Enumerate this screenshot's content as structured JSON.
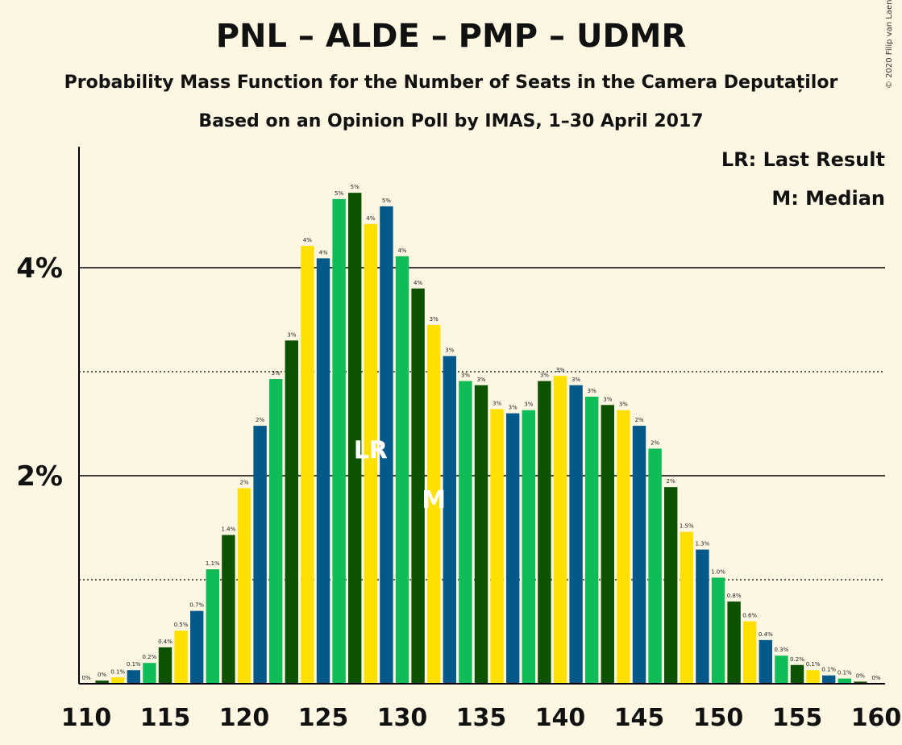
{
  "title": "PNL – ALDE – PMP – UDMR",
  "subtitle": "Probability Mass Function for the Number of Seats in the Camera Deputaților",
  "subtitle2": "Based on an Opinion Poll by IMAS, 1–30 April 2017",
  "copyright": "© 2020 Filip van Laenen",
  "legend": {
    "lr": "LR: Last Result",
    "m": "M: Median"
  },
  "markers": {
    "lr_label": "LR",
    "m_label": "M"
  },
  "colors": {
    "green": "#10bc58",
    "dark_green": "#0c5200",
    "blue": "#02598a",
    "yellow": "#ffe000",
    "background": "#fdf6e3"
  },
  "chart_data": {
    "type": "bar",
    "xlabel": "",
    "ylabel": "",
    "ylim": [
      0,
      5.0
    ],
    "y_ticks": [
      {
        "value": 2,
        "label": "2%"
      },
      {
        "value": 4,
        "label": "4%"
      }
    ],
    "x_tick_labels": [
      "110",
      "115",
      "120",
      "125",
      "130",
      "135",
      "140",
      "145",
      "150",
      "155",
      "160"
    ],
    "last_result": 128,
    "median": 132,
    "bars": [
      {
        "seats": 110,
        "value": 0.0,
        "label": "0%",
        "color": "dark_green"
      },
      {
        "seats": 111,
        "value": 0.03,
        "label": "0%",
        "color": "dark_green"
      },
      {
        "seats": 112,
        "value": 0.06,
        "label": "0.1%",
        "color": "yellow"
      },
      {
        "seats": 113,
        "value": 0.13,
        "label": "0.1%",
        "color": "blue"
      },
      {
        "seats": 114,
        "value": 0.2,
        "label": "0.2%",
        "color": "green"
      },
      {
        "seats": 115,
        "value": 0.35,
        "label": "0.4%",
        "color": "dark_green"
      },
      {
        "seats": 116,
        "value": 0.51,
        "label": "0.5%",
        "color": "yellow"
      },
      {
        "seats": 117,
        "value": 0.7,
        "label": "0.7%",
        "color": "blue"
      },
      {
        "seats": 118,
        "value": 1.1,
        "label": "1.1%",
        "color": "green"
      },
      {
        "seats": 119,
        "value": 1.43,
        "label": "1.4%",
        "color": "dark_green"
      },
      {
        "seats": 120,
        "value": 1.88,
        "label": "2%",
        "color": "yellow"
      },
      {
        "seats": 121,
        "value": 2.48,
        "label": "2%",
        "color": "blue"
      },
      {
        "seats": 122,
        "value": 2.93,
        "label": "3%",
        "color": "green"
      },
      {
        "seats": 123,
        "value": 3.3,
        "label": "3%",
        "color": "dark_green"
      },
      {
        "seats": 124,
        "value": 4.21,
        "label": "4%",
        "color": "yellow"
      },
      {
        "seats": 125,
        "value": 4.09,
        "label": "4%",
        "color": "blue"
      },
      {
        "seats": 126,
        "value": 4.66,
        "label": "5%",
        "color": "green"
      },
      {
        "seats": 127,
        "value": 4.72,
        "label": "5%",
        "color": "dark_green"
      },
      {
        "seats": 128,
        "value": 4.42,
        "label": "4%",
        "color": "yellow"
      },
      {
        "seats": 129,
        "value": 4.59,
        "label": "5%",
        "color": "blue"
      },
      {
        "seats": 130,
        "value": 4.11,
        "label": "4%",
        "color": "green"
      },
      {
        "seats": 131,
        "value": 3.8,
        "label": "4%",
        "color": "dark_green"
      },
      {
        "seats": 132,
        "value": 3.45,
        "label": "3%",
        "color": "yellow"
      },
      {
        "seats": 133,
        "value": 3.15,
        "label": "3%",
        "color": "blue"
      },
      {
        "seats": 134,
        "value": 2.91,
        "label": "3%",
        "color": "green"
      },
      {
        "seats": 135,
        "value": 2.87,
        "label": "3%",
        "color": "dark_green"
      },
      {
        "seats": 136,
        "value": 2.64,
        "label": "3%",
        "color": "yellow"
      },
      {
        "seats": 137,
        "value": 2.6,
        "label": "3%",
        "color": "blue"
      },
      {
        "seats": 138,
        "value": 2.63,
        "label": "3%",
        "color": "green"
      },
      {
        "seats": 139,
        "value": 2.91,
        "label": "3%",
        "color": "dark_green"
      },
      {
        "seats": 140,
        "value": 2.96,
        "label": "3%",
        "color": "yellow"
      },
      {
        "seats": 141,
        "value": 2.87,
        "label": "3%",
        "color": "blue"
      },
      {
        "seats": 142,
        "value": 2.76,
        "label": "3%",
        "color": "green"
      },
      {
        "seats": 143,
        "value": 2.68,
        "label": "3%",
        "color": "dark_green"
      },
      {
        "seats": 144,
        "value": 2.63,
        "label": "3%",
        "color": "yellow"
      },
      {
        "seats": 145,
        "value": 2.48,
        "label": "2%",
        "color": "blue"
      },
      {
        "seats": 146,
        "value": 2.26,
        "label": "2%",
        "color": "green"
      },
      {
        "seats": 147,
        "value": 1.89,
        "label": "2%",
        "color": "dark_green"
      },
      {
        "seats": 148,
        "value": 1.46,
        "label": "1.5%",
        "color": "yellow"
      },
      {
        "seats": 149,
        "value": 1.29,
        "label": "1.3%",
        "color": "blue"
      },
      {
        "seats": 150,
        "value": 1.02,
        "label": "1.0%",
        "color": "green"
      },
      {
        "seats": 151,
        "value": 0.79,
        "label": "0.8%",
        "color": "dark_green"
      },
      {
        "seats": 152,
        "value": 0.6,
        "label": "0.6%",
        "color": "yellow"
      },
      {
        "seats": 153,
        "value": 0.42,
        "label": "0.4%",
        "color": "blue"
      },
      {
        "seats": 154,
        "value": 0.27,
        "label": "0.3%",
        "color": "green"
      },
      {
        "seats": 155,
        "value": 0.18,
        "label": "0.2%",
        "color": "dark_green"
      },
      {
        "seats": 156,
        "value": 0.13,
        "label": "0.1%",
        "color": "yellow"
      },
      {
        "seats": 157,
        "value": 0.08,
        "label": "0.1%",
        "color": "blue"
      },
      {
        "seats": 158,
        "value": 0.05,
        "label": "0.1%",
        "color": "green"
      },
      {
        "seats": 159,
        "value": 0.02,
        "label": "0%",
        "color": "dark_green"
      },
      {
        "seats": 160,
        "value": 0.0,
        "label": "0%",
        "color": "yellow"
      }
    ]
  }
}
